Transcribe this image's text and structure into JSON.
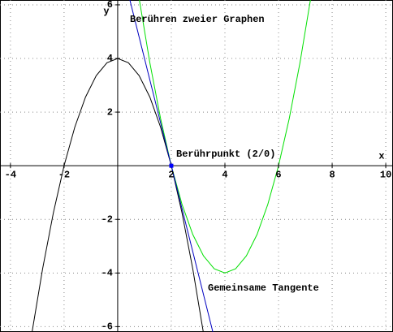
{
  "chart_data": {
    "type": "line",
    "x_label": "x",
    "y_label": "y",
    "annotations": [
      "Berühren zweier Graphen",
      "Berührpunkt (2/0)",
      "Gemeinsame Tangente"
    ],
    "x": [
      -3.2,
      -2.8,
      -2.4,
      -2,
      -1.6,
      -1.2,
      -0.8,
      -0.4,
      0,
      0.4,
      0.8,
      1.2,
      1.6,
      2,
      2.4,
      2.8,
      3.2,
      3.6,
      4,
      4.4,
      4.8,
      5.2,
      5.6,
      6,
      6.4,
      6.8,
      7.2
    ],
    "series": [
      {
        "color": "#000000",
        "values": [
          -6.24,
          -3.84,
          -1.76,
          0,
          1.44,
          2.56,
          3.36,
          3.84,
          4,
          3.84,
          3.36,
          2.56,
          1.44,
          0,
          -1.76,
          -3.84,
          -6.24,
          null,
          null,
          null,
          null,
          null,
          null,
          null,
          null,
          null,
          null
        ]
      },
      {
        "color": "#00e000",
        "values": [
          null,
          null,
          null,
          null,
          null,
          null,
          null,
          null,
          null,
          null,
          6.24,
          3.84,
          1.76,
          0,
          -1.44,
          -2.56,
          -3.36,
          -3.84,
          -4,
          -3.84,
          -3.36,
          -2.56,
          -1.44,
          0,
          1.76,
          3.84,
          6.24
        ]
      },
      {
        "color": "#0000c0",
        "values": [
          null,
          null,
          null,
          null,
          null,
          null,
          null,
          null,
          null,
          6.4,
          4.8,
          3.2,
          1.6,
          0,
          -1.6,
          -3.2,
          -4.8,
          -6.4,
          null,
          null,
          null,
          null,
          null,
          null,
          null,
          null,
          null
        ]
      }
    ],
    "points": [
      {
        "x": 2,
        "y": 0,
        "color": "#0000ff"
      }
    ],
    "xlim": [
      -4.39,
      10.27
    ],
    "ylim": [
      -6.2,
      6.18
    ],
    "xticks": [
      -4,
      -2,
      2,
      4,
      6,
      8,
      10
    ],
    "yticks": [
      -6,
      -4,
      -2,
      2,
      4,
      6
    ],
    "grid": true
  }
}
